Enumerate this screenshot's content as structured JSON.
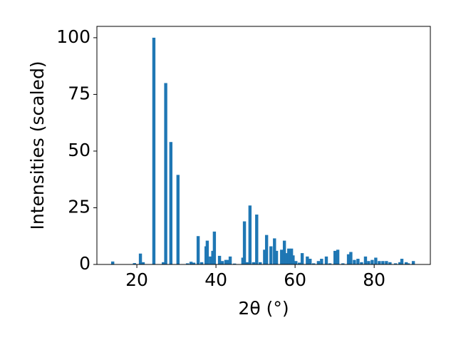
{
  "chart_data": {
    "type": "bar",
    "x_label": "2θ (°)",
    "y_label": "Intensities (scaled)",
    "color": "#1f77b4",
    "x": [
      13.9,
      19.4,
      20.9,
      21.6,
      24.3,
      26.7,
      27.3,
      28.6,
      30.4,
      32.8,
      33.7,
      34.4,
      35.5,
      36.4,
      37.5,
      37.8,
      38.6,
      39.2,
      39.6,
      40.9,
      41.6,
      42.5,
      43.1,
      43.6,
      44.7,
      46.8,
      47.2,
      47.9,
      48.6,
      49.5,
      50.3,
      51.2,
      52.3,
      52.8,
      53.9,
      54.8,
      55.3,
      56.6,
      57.3,
      57.8,
      58.4,
      59.1,
      59.5,
      60.2,
      61.1,
      61.8,
      63.1,
      63.8,
      64.7,
      65.9,
      66.7,
      67.9,
      68.8,
      70.1,
      70.8,
      72.1,
      73.5,
      74.1,
      75.0,
      75.9,
      76.8,
      77.8,
      78.6,
      79.5,
      80.4,
      81.3,
      82.2,
      83.1,
      84.0,
      85.4,
      86.5,
      87.0,
      88.1,
      88.6,
      89.9
    ],
    "values": [
      1.3,
      0.6,
      4.8,
      1,
      100,
      1,
      80,
      54,
      39.5,
      0.5,
      1.2,
      0.8,
      12.5,
      1,
      8,
      10.5,
      3.5,
      6,
      14.5,
      3.8,
      1.5,
      2,
      2,
      3.5,
      0.4,
      3,
      19,
      1,
      26,
      1,
      22,
      1,
      6.5,
      13,
      8,
      11.5,
      6,
      6.5,
      10.5,
      5,
      7,
      7,
      4,
      1.5,
      0.8,
      5,
      3.5,
      2.5,
      0.5,
      1.5,
      2.5,
      3.5,
      0.5,
      6,
      6.5,
      0.5,
      4.5,
      5.5,
      2,
      2.5,
      1,
      3.5,
      1.5,
      2,
      3,
      1.5,
      1.5,
      1.5,
      1,
      0.5,
      1,
      2.5,
      1,
      0.5,
      1.5
    ],
    "xlim": [
      9.9,
      94.2
    ],
    "ylim": [
      0,
      105
    ],
    "xticks": [
      20,
      40,
      60,
      80
    ],
    "yticks": [
      0,
      25,
      50,
      75,
      100
    ]
  }
}
